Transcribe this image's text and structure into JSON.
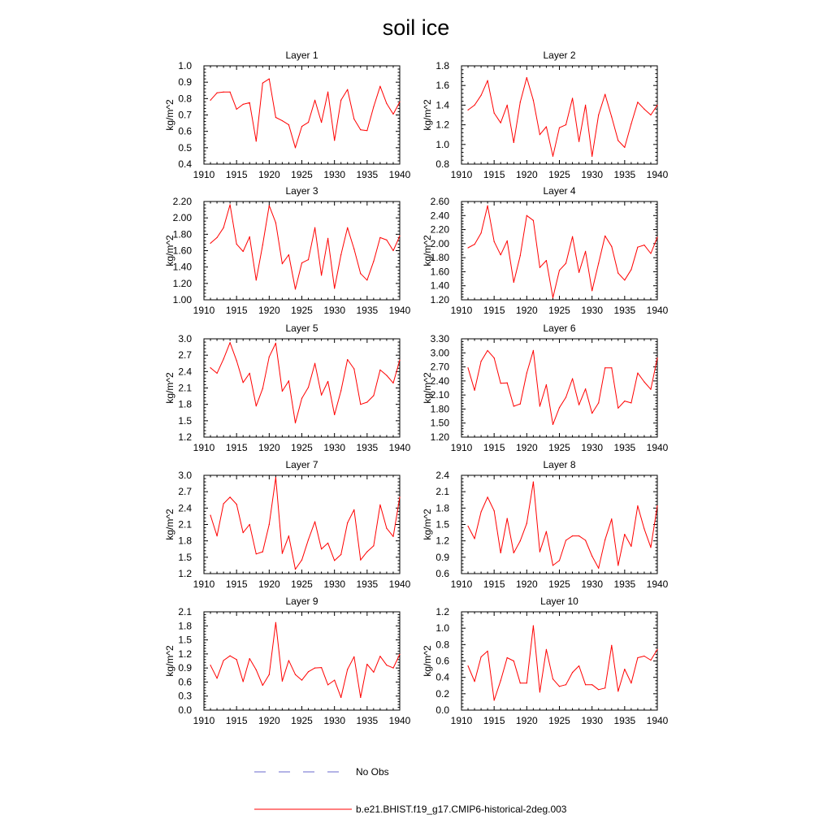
{
  "title": "soil ice",
  "line_color": "#ff0000",
  "legend": {
    "entries": [
      {
        "label": "No Obs",
        "style": "dashed",
        "color": "#6a6acd"
      },
      {
        "label": "b.e21.BHIST.f19_g17.CMIP6-historical-2deg.003",
        "style": "solid",
        "color": "#ff0000"
      }
    ]
  },
  "chart_data": [
    {
      "type": "line",
      "title": "Layer 1",
      "ylabel": "kg/m^2",
      "xlim": [
        1910,
        1940
      ],
      "ylim": [
        0.4,
        1.0
      ],
      "xticks": [
        "1910",
        "1915",
        "1920",
        "1925",
        "1930",
        "1935",
        "1940"
      ],
      "yticks": [
        "0.4",
        "0.5",
        "0.6",
        "0.7",
        "0.8",
        "0.9",
        "1.0"
      ],
      "x": [
        1911,
        1912,
        1913,
        1914,
        1915,
        1916,
        1917,
        1918,
        1919,
        1920,
        1921,
        1922,
        1923,
        1924,
        1925,
        1926,
        1927,
        1928,
        1929,
        1930,
        1931,
        1932,
        1933,
        1934,
        1935,
        1936,
        1937,
        1938,
        1939,
        1940
      ],
      "values": [
        0.79,
        0.835,
        0.84,
        0.84,
        0.735,
        0.765,
        0.775,
        0.54,
        0.895,
        0.92,
        0.685,
        0.665,
        0.64,
        0.5,
        0.63,
        0.655,
        0.79,
        0.655,
        0.84,
        0.545,
        0.79,
        0.855,
        0.675,
        0.61,
        0.605,
        0.75,
        0.875,
        0.77,
        0.705,
        0.78
      ]
    },
    {
      "type": "line",
      "title": "Layer 2",
      "ylabel": "kg/m^2",
      "xlim": [
        1910,
        1940
      ],
      "ylim": [
        0.8,
        1.8
      ],
      "xticks": [
        "1910",
        "1915",
        "1920",
        "1925",
        "1930",
        "1935",
        "1940"
      ],
      "yticks": [
        "0.8",
        "1.0",
        "1.2",
        "1.4",
        "1.6",
        "1.8"
      ],
      "x": [
        1911,
        1912,
        1913,
        1914,
        1915,
        1916,
        1917,
        1918,
        1919,
        1920,
        1921,
        1922,
        1923,
        1924,
        1925,
        1926,
        1927,
        1928,
        1929,
        1930,
        1931,
        1932,
        1933,
        1934,
        1935,
        1936,
        1937,
        1938,
        1939,
        1940
      ],
      "values": [
        1.35,
        1.4,
        1.5,
        1.65,
        1.32,
        1.22,
        1.4,
        1.02,
        1.43,
        1.68,
        1.45,
        1.1,
        1.18,
        0.88,
        1.17,
        1.2,
        1.47,
        1.03,
        1.4,
        0.88,
        1.3,
        1.51,
        1.28,
        1.04,
        0.97,
        1.21,
        1.43,
        1.36,
        1.3,
        1.4
      ]
    },
    {
      "type": "line",
      "title": "Layer 3",
      "ylabel": "kg/m^2",
      "xlim": [
        1910,
        1940
      ],
      "ylim": [
        1.0,
        2.2
      ],
      "xticks": [
        "1910",
        "1915",
        "1920",
        "1925",
        "1930",
        "1935",
        "1940"
      ],
      "yticks": [
        "1.00",
        "1.20",
        "1.40",
        "1.60",
        "1.80",
        "2.00",
        "2.20"
      ],
      "x": [
        1911,
        1912,
        1913,
        1914,
        1915,
        1916,
        1917,
        1918,
        1919,
        1920,
        1921,
        1922,
        1923,
        1924,
        1925,
        1926,
        1927,
        1928,
        1929,
        1930,
        1931,
        1932,
        1933,
        1934,
        1935,
        1936,
        1937,
        1938,
        1939,
        1940
      ],
      "values": [
        1.69,
        1.76,
        1.88,
        2.16,
        1.68,
        1.59,
        1.77,
        1.24,
        1.67,
        2.15,
        1.94,
        1.44,
        1.55,
        1.13,
        1.45,
        1.49,
        1.88,
        1.3,
        1.75,
        1.14,
        1.55,
        1.88,
        1.62,
        1.32,
        1.24,
        1.47,
        1.76,
        1.73,
        1.6,
        1.78
      ]
    },
    {
      "type": "line",
      "title": "Layer 4",
      "ylabel": "kg/m^2",
      "xlim": [
        1910,
        1940
      ],
      "ylim": [
        1.2,
        2.6
      ],
      "xticks": [
        "1910",
        "1915",
        "1920",
        "1925",
        "1930",
        "1935",
        "1940"
      ],
      "yticks": [
        "1.20",
        "1.40",
        "1.60",
        "1.80",
        "2.00",
        "2.20",
        "2.40",
        "2.60"
      ],
      "x": [
        1911,
        1912,
        1913,
        1914,
        1915,
        1916,
        1917,
        1918,
        1919,
        1920,
        1921,
        1922,
        1923,
        1924,
        1925,
        1926,
        1927,
        1928,
        1929,
        1930,
        1931,
        1932,
        1933,
        1934,
        1935,
        1936,
        1937,
        1938,
        1939,
        1940
      ],
      "values": [
        1.94,
        1.99,
        2.15,
        2.54,
        2.03,
        1.84,
        2.04,
        1.45,
        1.83,
        2.4,
        2.33,
        1.66,
        1.76,
        1.23,
        1.62,
        1.72,
        2.1,
        1.59,
        1.89,
        1.33,
        1.72,
        2.11,
        1.96,
        1.58,
        1.48,
        1.63,
        1.95,
        1.98,
        1.86,
        2.09
      ]
    },
    {
      "type": "line",
      "title": "Layer 5",
      "ylabel": "kg/m^2",
      "xlim": [
        1910,
        1940
      ],
      "ylim": [
        1.2,
        3.0
      ],
      "xticks": [
        "1910",
        "1915",
        "1920",
        "1925",
        "1930",
        "1935",
        "1940"
      ],
      "yticks": [
        "1.2",
        "1.5",
        "1.8",
        "2.1",
        "2.4",
        "2.7",
        "3.0"
      ],
      "x": [
        1911,
        1912,
        1913,
        1914,
        1915,
        1916,
        1917,
        1918,
        1919,
        1920,
        1921,
        1922,
        1923,
        1924,
        1925,
        1926,
        1927,
        1928,
        1929,
        1930,
        1931,
        1932,
        1933,
        1934,
        1935,
        1936,
        1937,
        1938,
        1939,
        1940
      ],
      "values": [
        2.47,
        2.37,
        2.63,
        2.93,
        2.6,
        2.2,
        2.37,
        1.77,
        2.09,
        2.67,
        2.92,
        2.04,
        2.23,
        1.46,
        1.91,
        2.11,
        2.55,
        1.97,
        2.22,
        1.61,
        2.05,
        2.62,
        2.45,
        1.8,
        1.84,
        1.96,
        2.43,
        2.33,
        2.19,
        2.61
      ]
    },
    {
      "type": "line",
      "title": "Layer 6",
      "ylabel": "kg/m^2",
      "xlim": [
        1910,
        1940
      ],
      "ylim": [
        1.2,
        3.3
      ],
      "xticks": [
        "1910",
        "1915",
        "1920",
        "1925",
        "1930",
        "1935",
        "1940"
      ],
      "yticks": [
        "1.20",
        "1.50",
        "1.80",
        "2.10",
        "2.40",
        "2.70",
        "3.00",
        "3.30"
      ],
      "x": [
        1911,
        1912,
        1913,
        1914,
        1915,
        1916,
        1917,
        1918,
        1919,
        1920,
        1921,
        1922,
        1923,
        1924,
        1925,
        1926,
        1927,
        1928,
        1929,
        1930,
        1931,
        1932,
        1933,
        1934,
        1935,
        1936,
        1937,
        1938,
        1939,
        1940
      ],
      "values": [
        2.68,
        2.2,
        2.82,
        3.05,
        2.89,
        2.35,
        2.36,
        1.86,
        1.91,
        2.57,
        3.05,
        1.86,
        2.32,
        1.47,
        1.83,
        2.05,
        2.45,
        1.89,
        2.23,
        1.71,
        1.93,
        2.68,
        2.68,
        1.82,
        1.97,
        1.93,
        2.57,
        2.38,
        2.22,
        2.89
      ]
    },
    {
      "type": "line",
      "title": "Layer 7",
      "ylabel": "kg/m^2",
      "xlim": [
        1910,
        1940
      ],
      "ylim": [
        1.2,
        3.0
      ],
      "xticks": [
        "1910",
        "1915",
        "1920",
        "1925",
        "1930",
        "1935",
        "1940"
      ],
      "yticks": [
        "1.2",
        "1.5",
        "1.8",
        "2.1",
        "2.4",
        "2.7",
        "3.0"
      ],
      "x": [
        1911,
        1912,
        1913,
        1914,
        1915,
        1916,
        1917,
        1918,
        1919,
        1920,
        1921,
        1922,
        1923,
        1924,
        1925,
        1926,
        1927,
        1928,
        1929,
        1930,
        1931,
        1932,
        1933,
        1934,
        1935,
        1936,
        1937,
        1938,
        1939,
        1940
      ],
      "values": [
        2.27,
        1.89,
        2.48,
        2.6,
        2.47,
        1.95,
        2.1,
        1.56,
        1.6,
        2.1,
        2.96,
        1.57,
        1.89,
        1.28,
        1.45,
        1.82,
        2.15,
        1.65,
        1.76,
        1.44,
        1.55,
        2.13,
        2.37,
        1.45,
        1.6,
        1.71,
        2.46,
        2.03,
        1.88,
        2.6
      ]
    },
    {
      "type": "line",
      "title": "Layer 8",
      "ylabel": "kg/m^2",
      "xlim": [
        1910,
        1940
      ],
      "ylim": [
        0.6,
        2.4
      ],
      "xticks": [
        "1910",
        "1915",
        "1920",
        "1925",
        "1930",
        "1935",
        "1940"
      ],
      "yticks": [
        "0.6",
        "0.9",
        "1.2",
        "1.5",
        "1.8",
        "2.1",
        "2.4"
      ],
      "x": [
        1911,
        1912,
        1913,
        1914,
        1915,
        1916,
        1917,
        1918,
        1919,
        1920,
        1921,
        1922,
        1923,
        1924,
        1925,
        1926,
        1927,
        1928,
        1929,
        1930,
        1931,
        1932,
        1933,
        1934,
        1935,
        1936,
        1937,
        1938,
        1939,
        1940
      ],
      "values": [
        1.47,
        1.24,
        1.73,
        2.0,
        1.75,
        0.98,
        1.61,
        0.98,
        1.2,
        1.52,
        2.28,
        1.0,
        1.37,
        0.75,
        0.84,
        1.21,
        1.29,
        1.29,
        1.21,
        0.92,
        0.7,
        1.22,
        1.6,
        0.75,
        1.32,
        1.1,
        1.84,
        1.42,
        1.08,
        1.84
      ]
    },
    {
      "type": "line",
      "title": "Layer 9",
      "ylabel": "kg/m^2",
      "xlim": [
        1910,
        1940
      ],
      "ylim": [
        0.0,
        2.1
      ],
      "xticks": [
        "1910",
        "1915",
        "1920",
        "1925",
        "1930",
        "1935",
        "1940"
      ],
      "yticks": [
        "0.0",
        "0.3",
        "0.6",
        "0.9",
        "1.2",
        "1.5",
        "1.8",
        "2.1"
      ],
      "x": [
        1911,
        1912,
        1913,
        1914,
        1915,
        1916,
        1917,
        1918,
        1919,
        1920,
        1921,
        1922,
        1923,
        1924,
        1925,
        1926,
        1927,
        1928,
        1929,
        1930,
        1931,
        1932,
        1933,
        1934,
        1935,
        1936,
        1937,
        1938,
        1939,
        1940
      ],
      "values": [
        0.96,
        0.68,
        1.06,
        1.16,
        1.08,
        0.61,
        1.1,
        0.86,
        0.53,
        0.76,
        1.87,
        0.62,
        1.06,
        0.76,
        0.64,
        0.82,
        0.9,
        0.91,
        0.54,
        0.64,
        0.27,
        0.87,
        1.14,
        0.27,
        0.98,
        0.81,
        1.15,
        0.96,
        0.9,
        1.19
      ]
    },
    {
      "type": "line",
      "title": "Layer 10",
      "ylabel": "kg/m^2",
      "xlim": [
        1910,
        1940
      ],
      "ylim": [
        0.0,
        1.2
      ],
      "xticks": [
        "1910",
        "1915",
        "1920",
        "1925",
        "1930",
        "1935",
        "1940"
      ],
      "yticks": [
        "0.0",
        "0.2",
        "0.4",
        "0.6",
        "0.8",
        "1.0",
        "1.2"
      ],
      "x": [
        1911,
        1912,
        1913,
        1914,
        1915,
        1916,
        1917,
        1918,
        1919,
        1920,
        1921,
        1922,
        1923,
        1924,
        1925,
        1926,
        1927,
        1928,
        1929,
        1930,
        1931,
        1932,
        1933,
        1934,
        1935,
        1936,
        1937,
        1938,
        1939,
        1940
      ],
      "values": [
        0.54,
        0.35,
        0.65,
        0.72,
        0.12,
        0.36,
        0.64,
        0.6,
        0.33,
        0.33,
        1.03,
        0.22,
        0.74,
        0.38,
        0.29,
        0.31,
        0.46,
        0.54,
        0.31,
        0.31,
        0.25,
        0.27,
        0.79,
        0.23,
        0.5,
        0.33,
        0.64,
        0.66,
        0.61,
        0.74
      ]
    }
  ]
}
